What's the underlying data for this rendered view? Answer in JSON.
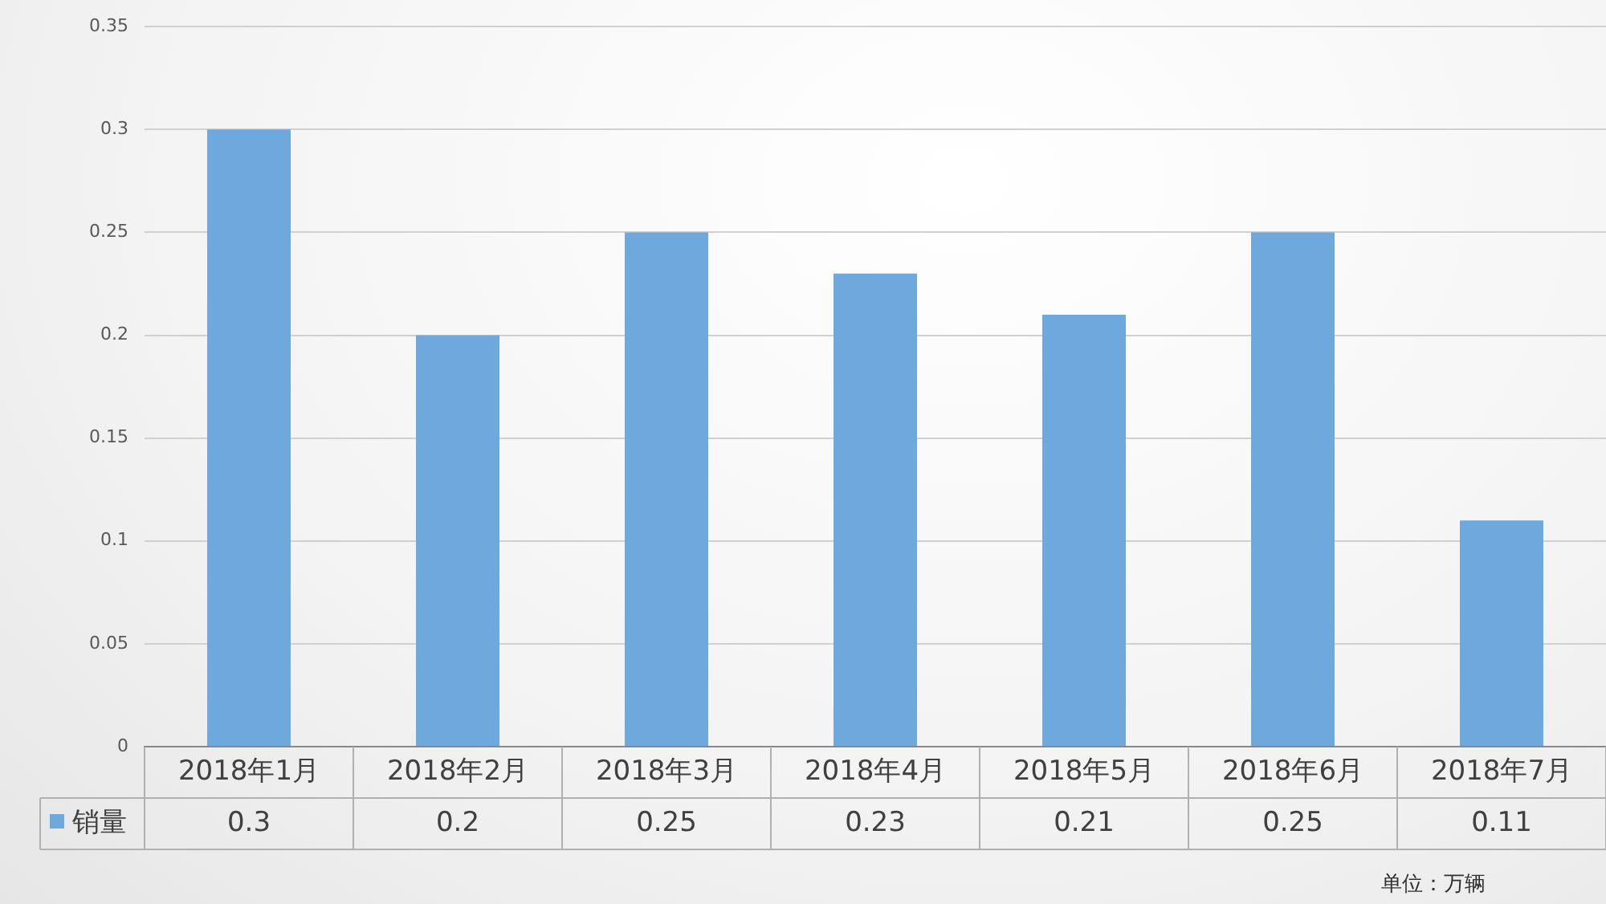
{
  "chart_data": {
    "type": "bar",
    "categories": [
      "2018年1月",
      "2018年2月",
      "2018年3月",
      "2018年4月",
      "2018年5月",
      "2018年6月",
      "2018年7月"
    ],
    "series": [
      {
        "name": "销量",
        "color": "#6fa8dc",
        "values": [
          0.3,
          0.2,
          0.25,
          0.23,
          0.21,
          0.25,
          0.11
        ]
      }
    ],
    "ylim": [
      0,
      0.35
    ],
    "yticks": [
      0,
      0.05,
      0.1,
      0.15,
      0.2,
      0.25,
      0.3,
      0.35
    ],
    "grid": "y",
    "legend": "bottom",
    "data_labels": true,
    "annotations": [
      "单位：万辆"
    ]
  }
}
